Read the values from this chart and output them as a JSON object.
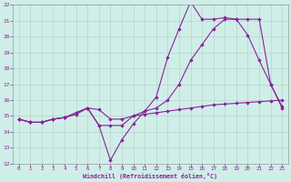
{
  "xlabel": "Windchill (Refroidissement éolien,°C)",
  "xlim": [
    -0.5,
    23.5
  ],
  "ylim": [
    12,
    22
  ],
  "xticks": [
    0,
    1,
    2,
    3,
    4,
    5,
    6,
    7,
    8,
    9,
    10,
    11,
    12,
    13,
    14,
    15,
    16,
    17,
    18,
    19,
    20,
    21,
    22,
    23
  ],
  "yticks": [
    12,
    13,
    14,
    15,
    16,
    17,
    18,
    19,
    20,
    21,
    22
  ],
  "bg_color": "#d0eee8",
  "grid_color": "#b0ccc8",
  "line_color": "#882299",
  "line1_x": [
    0,
    1,
    2,
    3,
    4,
    5,
    6,
    7,
    8,
    9,
    10,
    11,
    12,
    13,
    14,
    15,
    16,
    17,
    18,
    19,
    20,
    21,
    22,
    23
  ],
  "line1_y": [
    14.8,
    14.6,
    14.6,
    14.8,
    14.9,
    15.1,
    15.5,
    15.4,
    14.8,
    14.8,
    15.0,
    15.1,
    15.2,
    15.3,
    15.4,
    15.5,
    15.6,
    15.7,
    15.75,
    15.8,
    15.85,
    15.9,
    15.95,
    16.0
  ],
  "line2_x": [
    0,
    1,
    2,
    3,
    4,
    5,
    6,
    7,
    8,
    9,
    10,
    11,
    12,
    13,
    14,
    15,
    16,
    17,
    18,
    19,
    20,
    21,
    22,
    23
  ],
  "line2_y": [
    14.8,
    14.6,
    14.6,
    14.8,
    14.9,
    15.2,
    15.5,
    14.4,
    12.2,
    13.5,
    14.5,
    15.3,
    16.2,
    18.7,
    20.5,
    22.2,
    21.1,
    21.1,
    21.2,
    21.1,
    20.1,
    18.5,
    17.0,
    15.5
  ],
  "line3_x": [
    0,
    1,
    2,
    3,
    4,
    5,
    6,
    7,
    8,
    9,
    10,
    11,
    12,
    13,
    14,
    15,
    16,
    17,
    18,
    19,
    20,
    21,
    22,
    23
  ],
  "line3_y": [
    14.8,
    14.6,
    14.6,
    14.8,
    14.9,
    15.2,
    15.5,
    14.4,
    14.4,
    14.4,
    15.0,
    15.3,
    15.5,
    16.0,
    17.0,
    18.5,
    19.5,
    20.5,
    21.1,
    21.1,
    21.1,
    21.1,
    17.0,
    15.6
  ]
}
